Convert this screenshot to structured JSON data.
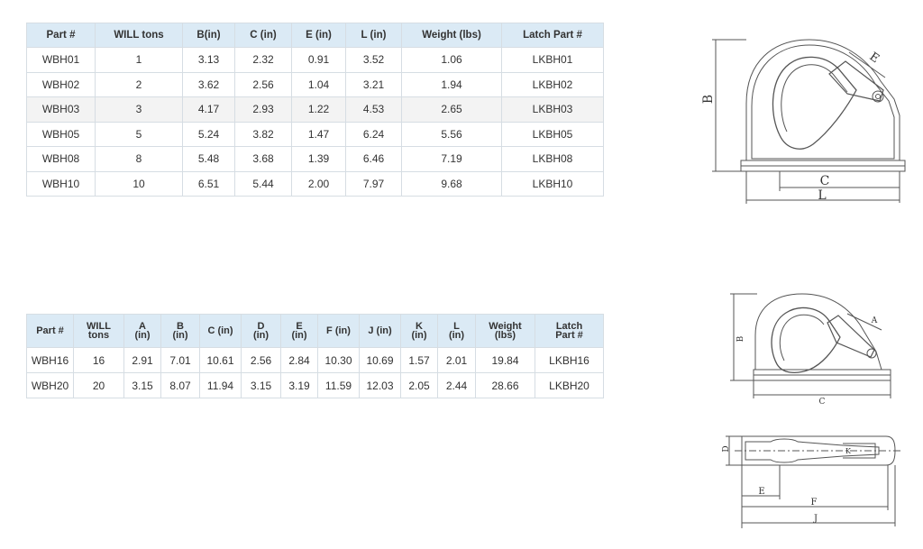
{
  "table1": {
    "headers": [
      "Part #",
      "WILL tons",
      "B(in)",
      "C (in)",
      "E (in)",
      "L (in)",
      "Weight (lbs)",
      "Latch Part #"
    ],
    "rows": [
      [
        "WBH01",
        "1",
        "3.13",
        "2.32",
        "0.91",
        "3.52",
        "1.06",
        "LKBH01"
      ],
      [
        "WBH02",
        "2",
        "3.62",
        "2.56",
        "1.04",
        "3.21",
        "1.94",
        "LKBH02"
      ],
      [
        "WBH03",
        "3",
        "4.17",
        "2.93",
        "1.22",
        "4.53",
        "2.65",
        "LKBH03"
      ],
      [
        "WBH05",
        "5",
        "5.24",
        "3.82",
        "1.47",
        "6.24",
        "5.56",
        "LKBH05"
      ],
      [
        "WBH08",
        "8",
        "5.48",
        "3.68",
        "1.39",
        "6.46",
        "7.19",
        "LKBH08"
      ],
      [
        "WBH10",
        "10",
        "6.51",
        "5.44",
        "2.00",
        "7.97",
        "9.68",
        "LKBH10"
      ]
    ]
  },
  "table2": {
    "headers": [
      [
        "Part #"
      ],
      [
        "WILL",
        "tons"
      ],
      [
        "A",
        "(in)"
      ],
      [
        "B",
        "(in)"
      ],
      [
        "C (in)"
      ],
      [
        "D",
        "(in)"
      ],
      [
        "E",
        "(in)"
      ],
      [
        "F (in)"
      ],
      [
        "J (in)"
      ],
      [
        "K",
        "(in)"
      ],
      [
        "L",
        "(in)"
      ],
      [
        "Weight",
        "(lbs)"
      ],
      [
        "Latch",
        "Part #"
      ]
    ],
    "rows": [
      [
        "WBH16",
        "16",
        "2.91",
        "7.01",
        "10.61",
        "2.56",
        "2.84",
        "10.30",
        "10.69",
        "1.57",
        "2.01",
        "19.84",
        "LKBH16"
      ],
      [
        "WBH20",
        "20",
        "3.15",
        "8.07",
        "11.94",
        "3.15",
        "3.19",
        "11.59",
        "12.03",
        "2.05",
        "2.44",
        "28.66",
        "LKBH20"
      ]
    ]
  },
  "drawing1": {
    "labels": {
      "B": "B",
      "C": "C",
      "E": "E",
      "L": "L"
    }
  },
  "drawing2": {
    "labels": {
      "A": "A",
      "B": "B",
      "C": "C"
    }
  },
  "drawing3": {
    "labels": {
      "D": "D",
      "E": "E",
      "F": "F",
      "J": "J",
      "K": "K"
    }
  },
  "colors": {
    "header_bg": "#dbeaf5",
    "border": "#d6dde3",
    "line": "#555555"
  }
}
